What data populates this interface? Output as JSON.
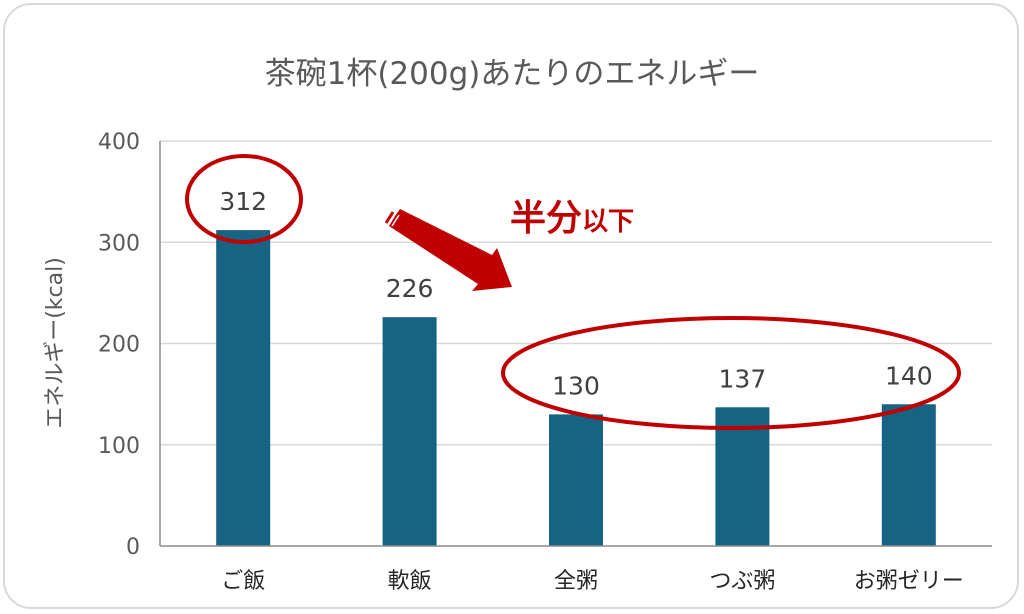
{
  "chart_data": {
    "type": "bar",
    "title": "茶碗1杯(200g)あたりのエネルギー",
    "ylabel": "エネルギー(kcal)",
    "xlabel": "",
    "categories": [
      "ご飯",
      "軟飯",
      "全粥",
      "つぶ粥",
      "お粥ゼリー"
    ],
    "values": [
      312,
      226,
      130,
      137,
      140
    ],
    "ylim": [
      0,
      400
    ],
    "yticks": [
      0,
      100,
      200,
      300,
      400
    ],
    "grid": true,
    "bar_color": "#176384",
    "annotations": [
      {
        "text_big": "半分",
        "text_small": "以下",
        "color": "#c00000"
      }
    ]
  }
}
